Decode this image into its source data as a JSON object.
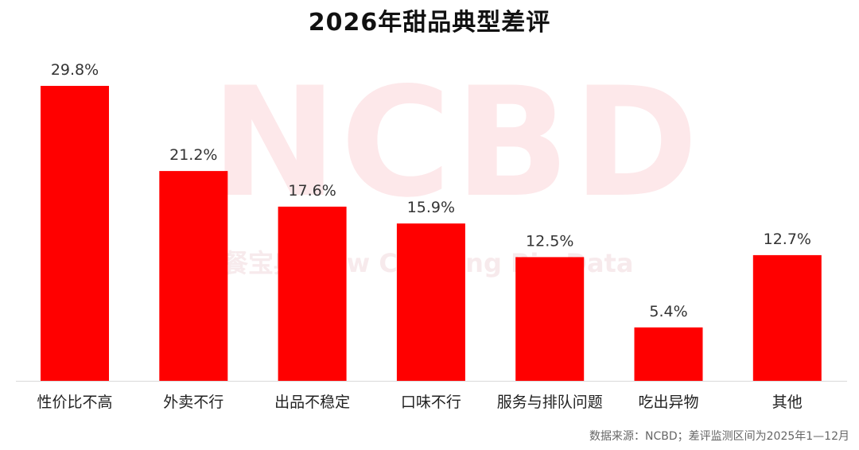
{
  "chart_data": {
    "type": "bar",
    "title": "2026年甜品典型差评",
    "categories": [
      "性价比不高",
      "外卖不行",
      "出品不稳定",
      "口味不行",
      "服务与排队问题",
      "吃出异物",
      "其他"
    ],
    "values": [
      29.8,
      21.2,
      17.6,
      15.9,
      12.5,
      5.4,
      12.7
    ],
    "value_labels": [
      "29.8%",
      "21.2%",
      "17.6%",
      "15.9%",
      "12.5%",
      "5.4%",
      "12.7%"
    ],
    "unit": "%",
    "ylim": [
      0,
      30
    ],
    "grid": false,
    "legend": "none",
    "bar_color": "#ff0000"
  },
  "watermark": {
    "main": "NCBD",
    "sub": "餐宝典 New Catering Big Data"
  },
  "source": "数据来源：NCBD；差评监测区间为2025年1—12月"
}
